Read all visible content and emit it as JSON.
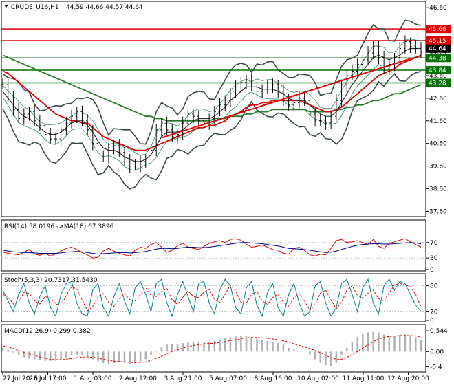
{
  "header": {
    "symbol_title": "CRUDE_U16,H1",
    "ohlc": "44.59 44.66 44.57 44.64"
  },
  "colors": {
    "price_line": "#000000",
    "ma_fast": "#2e2e2e",
    "ma_red": "#e00000",
    "ma_green": "#2a7a2a",
    "level_red": "#e00000",
    "level_green": "#007000",
    "trend": "#e00000",
    "rsi": "#e00000",
    "rsi_ma": "#000080",
    "stoch_main": "#008080",
    "stoch_signal": "#e00000",
    "macd_hist": "#b0b0b0",
    "macd_signal": "#e00000"
  },
  "chart_data": [
    {
      "type": "line",
      "name": "main",
      "ylim": [
        37.4,
        46.85
      ],
      "yticks": [
        46.6,
        45.6,
        44.64,
        43.6,
        42.6,
        41.6,
        40.6,
        39.6,
        38.6,
        37.6
      ],
      "x_labels": [
        "27 Jul 2016",
        "28 Jul 17:00",
        "1 Aug 03:00",
        "2 Aug 12:00",
        "3 Aug 21:00",
        "5 Aug 07:00",
        "8 Aug 16:00",
        "10 Aug 02:00",
        "11 Aug 11:00",
        "12 Aug 20:00"
      ],
      "close": [
        43.2,
        42.7,
        42.1,
        41.7,
        41.9,
        42.0,
        41.6,
        41.4,
        41.0,
        40.8,
        40.8,
        41.2,
        41.5,
        41.8,
        42.0,
        41.6,
        41.2,
        40.6,
        40.0,
        40.0,
        40.4,
        40.5,
        40.2,
        39.9,
        39.6,
        39.6,
        39.8,
        39.9,
        40.3,
        41.2,
        41.5,
        41.2,
        40.9,
        41.0,
        41.5,
        41.9,
        41.8,
        41.6,
        41.5,
        41.7,
        42.0,
        42.3,
        42.5,
        42.8,
        43.1,
        43.3,
        43.4,
        43.1,
        42.9,
        43.0,
        43.1,
        43.2,
        42.9,
        42.5,
        42.3,
        42.4,
        42.6,
        42.5,
        41.9,
        41.6,
        41.6,
        41.5,
        41.8,
        42.5,
        43.2,
        43.6,
        43.8,
        44.1,
        44.3,
        44.6,
        44.9,
        44.4,
        43.9,
        44.1,
        44.4,
        44.8,
        45.1,
        44.9,
        44.8,
        44.6
      ],
      "ma_black": [
        42.9,
        42.6,
        42.3,
        42.0,
        41.8,
        41.7,
        41.5,
        41.3,
        41.1,
        41.0,
        41.0,
        41.1,
        41.3,
        41.5,
        41.6,
        41.6,
        41.4,
        41.1,
        40.7,
        40.4,
        40.3,
        40.3,
        40.2,
        40.0,
        39.9,
        39.8,
        39.8,
        39.9,
        40.1,
        40.5,
        40.9,
        41.1,
        41.1,
        41.1,
        41.2,
        41.4,
        41.6,
        41.7,
        41.7,
        41.7,
        41.8,
        42.0,
        42.2,
        42.5,
        42.7,
        42.9,
        43.1,
        43.1,
        43.1,
        43.0,
        43.0,
        43.0,
        42.9,
        42.8,
        42.6,
        42.5,
        42.5,
        42.5,
        42.3,
        42.1,
        41.9,
        41.8,
        41.8,
        42.0,
        42.4,
        42.8,
        43.2,
        43.5,
        43.8,
        44.1,
        44.4,
        44.5,
        44.4,
        44.3,
        44.4,
        44.5,
        44.7,
        44.8,
        44.8,
        44.8
      ],
      "ma_red": [
        43.8,
        43.7,
        43.5,
        43.3,
        43.1,
        42.9,
        42.7,
        42.5,
        42.3,
        42.1,
        41.9,
        41.8,
        41.7,
        41.6,
        41.6,
        41.5,
        41.5,
        41.3,
        41.1,
        40.9,
        40.8,
        40.7,
        40.6,
        40.5,
        40.4,
        40.3,
        40.3,
        40.3,
        40.4,
        40.5,
        40.6,
        40.7,
        40.8,
        40.9,
        41.0,
        41.1,
        41.2,
        41.3,
        41.3,
        41.4,
        41.4,
        41.5,
        41.6,
        41.8,
        41.9,
        42.0,
        42.2,
        42.3,
        42.3,
        42.4,
        42.4,
        42.5,
        42.5,
        42.5,
        42.5,
        42.5,
        42.5,
        42.4,
        42.3,
        42.2,
        42.1,
        42.0,
        42.0,
        42.1,
        42.2,
        42.4,
        42.6,
        42.8,
        43.0,
        43.2,
        43.4,
        43.6,
        43.7,
        43.8,
        43.9,
        44.1,
        44.2,
        44.3,
        44.4,
        44.5
      ],
      "ma_green": [
        44.5,
        44.4,
        44.3,
        44.2,
        44.1,
        44.0,
        43.9,
        43.8,
        43.7,
        43.6,
        43.5,
        43.4,
        43.3,
        43.2,
        43.1,
        43.0,
        42.9,
        42.8,
        42.7,
        42.6,
        42.5,
        42.4,
        42.3,
        42.2,
        42.1,
        42.0,
        41.9,
        41.8,
        41.8,
        41.7,
        41.7,
        41.6,
        41.6,
        41.6,
        41.6,
        41.6,
        41.6,
        41.6,
        41.6,
        41.6,
        41.7,
        41.7,
        41.7,
        41.8,
        41.8,
        41.8,
        41.9,
        41.9,
        42.0,
        42.0,
        42.0,
        42.1,
        42.1,
        42.1,
        42.1,
        42.1,
        42.1,
        42.1,
        42.0,
        42.0,
        42.0,
        42.0,
        42.0,
        42.1,
        42.1,
        42.2,
        42.2,
        42.3,
        42.3,
        42.4,
        42.5,
        42.5,
        42.6,
        42.7,
        42.8,
        42.8,
        42.9,
        43.0,
        43.1,
        43.2
      ],
      "trend_line": {
        "x": [
          30,
          77
        ],
        "y": [
          40.85,
          44.35
        ]
      },
      "levels": [
        {
          "value": 45.66,
          "label": "45.66",
          "color": "red"
        },
        {
          "value": 45.15,
          "label": "45.15",
          "color": "red"
        },
        {
          "value": 44.38,
          "label": "44.38",
          "color": "green"
        },
        {
          "value": 43.84,
          "label": "43.84",
          "color": "green"
        },
        {
          "value": 43.28,
          "label": "43.28",
          "color": "green"
        }
      ],
      "current_price": {
        "value": 44.64,
        "label": "44.64"
      }
    },
    {
      "type": "line",
      "name": "rsi",
      "title": "RSI(14) 58.0196 ->MA(18) 67.3896",
      "ylim": [
        0,
        100
      ],
      "yticks": [
        70,
        30,
        0
      ],
      "rsi": [
        45,
        42,
        40,
        38,
        45,
        52,
        40,
        37,
        42,
        35,
        40,
        48,
        55,
        58,
        52,
        44,
        38,
        30,
        32,
        48,
        55,
        48,
        42,
        38,
        35,
        50,
        58,
        55,
        65,
        70,
        58,
        45,
        50,
        62,
        68,
        58,
        55,
        52,
        60,
        68,
        72,
        75,
        70,
        78,
        80,
        76,
        66,
        58,
        60,
        64,
        58,
        52,
        50,
        42,
        40,
        55,
        58,
        50,
        38,
        35,
        40,
        38,
        55,
        75,
        78,
        70,
        72,
        75,
        70,
        65,
        78,
        60,
        55,
        68,
        72,
        76,
        80,
        72,
        65,
        58
      ],
      "rsi_ma": [
        50,
        48,
        46,
        45,
        44,
        44,
        43,
        42,
        42,
        42,
        42,
        43,
        45,
        46,
        47,
        46,
        44,
        42,
        40,
        41,
        42,
        43,
        44,
        44,
        43,
        44,
        45,
        47,
        50,
        53,
        55,
        55,
        54,
        55,
        57,
        58,
        58,
        57,
        57,
        58,
        60,
        62,
        64,
        66,
        68,
        70,
        70,
        69,
        68,
        67,
        65,
        63,
        61,
        58,
        55,
        54,
        53,
        52,
        50,
        48,
        46,
        44,
        45,
        48,
        52,
        56,
        60,
        63,
        65,
        66,
        67,
        67,
        66,
        66,
        67,
        68,
        69,
        70,
        69,
        67
      ]
    },
    {
      "type": "line",
      "name": "stochastic",
      "title": "Stoch(5,3,3) 20.7317 31.5430",
      "ylim": [
        0,
        100
      ],
      "yticks": [
        80,
        20,
        0
      ],
      "main": [
        70,
        45,
        20,
        60,
        85,
        40,
        15,
        55,
        80,
        30,
        10,
        60,
        85,
        90,
        40,
        15,
        10,
        70,
        85,
        30,
        10,
        55,
        85,
        45,
        15,
        75,
        90,
        60,
        20,
        85,
        95,
        40,
        10,
        60,
        90,
        55,
        20,
        85,
        90,
        40,
        15,
        70,
        95,
        80,
        30,
        15,
        75,
        90,
        35,
        10,
        65,
        85,
        30,
        10,
        60,
        85,
        40,
        10,
        20,
        80,
        90,
        40,
        10,
        30,
        85,
        95,
        60,
        20,
        75,
        95,
        40,
        15,
        80,
        95,
        70,
        90,
        85,
        60,
        35,
        21
      ],
      "signal": [
        60,
        55,
        38,
        42,
        65,
        62,
        45,
        38,
        55,
        52,
        38,
        35,
        58,
        78,
        72,
        48,
        22,
        32,
        55,
        62,
        42,
        32,
        50,
        62,
        48,
        45,
        60,
        75,
        58,
        55,
        67,
        73,
        48,
        37,
        53,
        68,
        55,
        53,
        65,
        72,
        48,
        42,
        60,
        82,
        68,
        42,
        40,
        60,
        67,
        45,
        37,
        53,
        60,
        42,
        33,
        52,
        62,
        45,
        23,
        37,
        63,
        70,
        47,
        27,
        42,
        70,
        80,
        58,
        52,
        63,
        70,
        50,
        45,
        63,
        82,
        85,
        82,
        78,
        60,
        32
      ]
    },
    {
      "type": "bar",
      "name": "macd",
      "title": "MACD(12,26,9) 0.299 0.382",
      "ylim": [
        -0.48,
        0.6
      ],
      "yticks": [
        0.544,
        0.0,
        -0.4
      ],
      "ytick_labels": [
        "0.544",
        "0.00",
        "-0.4"
      ],
      "hist": [
        0.1,
        0.05,
        -0.02,
        -0.1,
        -0.15,
        -0.18,
        -0.2,
        -0.22,
        -0.24,
        -0.25,
        -0.24,
        -0.2,
        -0.15,
        -0.1,
        -0.08,
        -0.1,
        -0.15,
        -0.2,
        -0.25,
        -0.3,
        -0.32,
        -0.3,
        -0.28,
        -0.3,
        -0.32,
        -0.3,
        -0.26,
        -0.2,
        -0.1,
        0.02,
        0.12,
        0.18,
        0.2,
        0.2,
        0.22,
        0.25,
        0.26,
        0.25,
        0.24,
        0.25,
        0.28,
        0.32,
        0.35,
        0.38,
        0.4,
        0.42,
        0.42,
        0.38,
        0.34,
        0.3,
        0.28,
        0.26,
        0.22,
        0.18,
        0.1,
        0.05,
        0.02,
        0.0,
        -0.1,
        -0.2,
        -0.3,
        -0.36,
        -0.38,
        -0.3,
        -0.1,
        0.1,
        0.25,
        0.38,
        0.45,
        0.5,
        0.52,
        0.5,
        0.45,
        0.42,
        0.42,
        0.44,
        0.45,
        0.43,
        0.38,
        0.3
      ],
      "signal": [
        0.15,
        0.12,
        0.08,
        0.03,
        -0.02,
        -0.06,
        -0.1,
        -0.14,
        -0.17,
        -0.2,
        -0.21,
        -0.21,
        -0.2,
        -0.18,
        -0.16,
        -0.14,
        -0.14,
        -0.15,
        -0.17,
        -0.2,
        -0.23,
        -0.25,
        -0.26,
        -0.27,
        -0.28,
        -0.29,
        -0.28,
        -0.27,
        -0.23,
        -0.18,
        -0.12,
        -0.06,
        0.0,
        0.05,
        0.09,
        0.13,
        0.16,
        0.18,
        0.2,
        0.21,
        0.22,
        0.24,
        0.26,
        0.29,
        0.31,
        0.34,
        0.36,
        0.37,
        0.37,
        0.36,
        0.35,
        0.33,
        0.31,
        0.28,
        0.25,
        0.2,
        0.16,
        0.12,
        0.08,
        0.03,
        -0.03,
        -0.1,
        -0.16,
        -0.2,
        -0.2,
        -0.15,
        -0.08,
        0.0,
        0.1,
        0.18,
        0.26,
        0.33,
        0.37,
        0.4,
        0.41,
        0.42,
        0.42,
        0.42,
        0.41,
        0.38
      ]
    }
  ]
}
